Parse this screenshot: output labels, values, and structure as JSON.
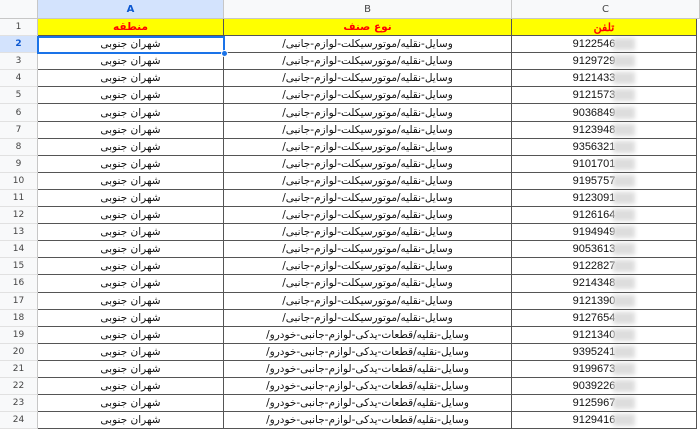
{
  "columns": [
    "A",
    "B",
    "C"
  ],
  "selected_cell": "A2",
  "header_row": {
    "row": "1",
    "region": "منطقه",
    "category": "نوع صنف",
    "phone": "تلفن"
  },
  "rows": [
    {
      "n": "2",
      "region": "شهران جنوبی",
      "category": "وسایل-نقلیه/موتورسیکلت-لوازم-جانبی/",
      "phone": "9122546"
    },
    {
      "n": "3",
      "region": "شهران جنوبی",
      "category": "وسایل-نقلیه/موتورسیکلت-لوازم-جانبی/",
      "phone": "9129729"
    },
    {
      "n": "4",
      "region": "شهران جنوبی",
      "category": "وسایل-نقلیه/موتورسیکلت-لوازم-جانبی/",
      "phone": "9121433"
    },
    {
      "n": "5",
      "region": "شهران جنوبی",
      "category": "وسایل-نقلیه/موتورسیکلت-لوازم-جانبی/",
      "phone": "9121573"
    },
    {
      "n": "6",
      "region": "شهران جنوبی",
      "category": "وسایل-نقلیه/موتورسیکلت-لوازم-جانبی/",
      "phone": "9036849"
    },
    {
      "n": "7",
      "region": "شهران جنوبی",
      "category": "وسایل-نقلیه/موتورسیکلت-لوازم-جانبی/",
      "phone": "9123948"
    },
    {
      "n": "8",
      "region": "شهران جنوبی",
      "category": "وسایل-نقلیه/موتورسیکلت-لوازم-جانبی/",
      "phone": "9356321"
    },
    {
      "n": "9",
      "region": "شهران جنوبی",
      "category": "وسایل-نقلیه/موتورسیکلت-لوازم-جانبی/",
      "phone": "9101701"
    },
    {
      "n": "10",
      "region": "شهران جنوبی",
      "category": "وسایل-نقلیه/موتورسیکلت-لوازم-جانبی/",
      "phone": "9195757"
    },
    {
      "n": "11",
      "region": "شهران جنوبی",
      "category": "وسایل-نقلیه/موتورسیکلت-لوازم-جانبی/",
      "phone": "9123091"
    },
    {
      "n": "12",
      "region": "شهران جنوبی",
      "category": "وسایل-نقلیه/موتورسیکلت-لوازم-جانبی/",
      "phone": "9126164"
    },
    {
      "n": "13",
      "region": "شهران جنوبی",
      "category": "وسایل-نقلیه/موتورسیکلت-لوازم-جانبی/",
      "phone": "9194949"
    },
    {
      "n": "14",
      "region": "شهران جنوبی",
      "category": "وسایل-نقلیه/موتورسیکلت-لوازم-جانبی/",
      "phone": "9053613"
    },
    {
      "n": "15",
      "region": "شهران جنوبی",
      "category": "وسایل-نقلیه/موتورسیکلت-لوازم-جانبی/",
      "phone": "9122827"
    },
    {
      "n": "16",
      "region": "شهران جنوبی",
      "category": "وسایل-نقلیه/موتورسیکلت-لوازم-جانبی/",
      "phone": "9214348"
    },
    {
      "n": "17",
      "region": "شهران جنوبی",
      "category": "وسایل-نقلیه/موتورسیکلت-لوازم-جانبی/",
      "phone": "9121390"
    },
    {
      "n": "18",
      "region": "شهران جنوبی",
      "category": "وسایل-نقلیه/موتورسیکلت-لوازم-جانبی/",
      "phone": "9127654"
    },
    {
      "n": "19",
      "region": "شهران جنوبی",
      "category": "وسایل-نقلیه/قطعات-یدکی-لوازم-جانبی-خودرو/",
      "phone": "9121340"
    },
    {
      "n": "20",
      "region": "شهران جنوبی",
      "category": "وسایل-نقلیه/قطعات-یدکی-لوازم-جانبی-خودرو/",
      "phone": "9395241"
    },
    {
      "n": "21",
      "region": "شهران جنوبی",
      "category": "وسایل-نقلیه/قطعات-یدکی-لوازم-جانبی-خودرو/",
      "phone": "9199673"
    },
    {
      "n": "22",
      "region": "شهران جنوبی",
      "category": "وسایل-نقلیه/قطعات-یدکی-لوازم-جانبی-خودرو/",
      "phone": "9039226"
    },
    {
      "n": "23",
      "region": "شهران جنوبی",
      "category": "وسایل-نقلیه/قطعات-یدکی-لوازم-جانبی-خودرو/",
      "phone": "9125967"
    },
    {
      "n": "24",
      "region": "شهران جنوبی",
      "category": "وسایل-نقلیه/قطعات-یدکی-لوازم-جانبی-خودرو/",
      "phone": "9129416"
    }
  ]
}
